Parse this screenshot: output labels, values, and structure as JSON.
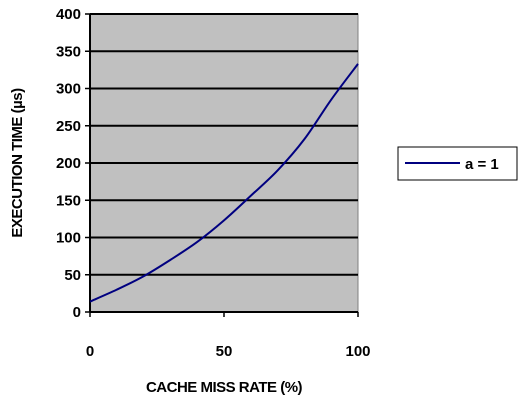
{
  "chart_data": {
    "type": "line",
    "xlabel": "CACHE MISS RATE (%)",
    "ylabel": "EXECUTION TIME (µs)",
    "xlim": [
      0,
      100
    ],
    "ylim": [
      0,
      400
    ],
    "xticks": [
      0,
      50,
      100
    ],
    "yticks": [
      0,
      50,
      100,
      150,
      200,
      250,
      300,
      350,
      400
    ],
    "grid": "horizontal",
    "legend_position": "right",
    "series": [
      {
        "name": "a = 1",
        "x": [
          0,
          10,
          20,
          30,
          40,
          50,
          60,
          70,
          80,
          90,
          100
        ],
        "y": [
          14,
          30,
          48,
          70,
          94,
          123,
          156,
          190,
          232,
          285,
          333
        ]
      }
    ]
  },
  "colors": {
    "plot_background": "#c0c0c0",
    "series_line": "#000080",
    "gridline": "#000000"
  }
}
